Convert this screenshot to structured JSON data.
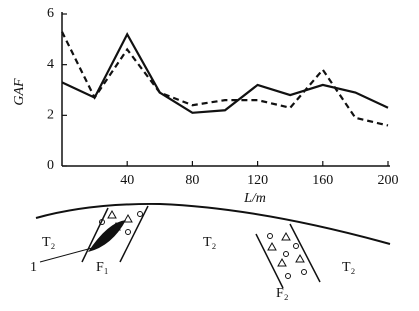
{
  "chart_data": {
    "type": "line",
    "y_label": "GAF",
    "x_label": "L/m",
    "x": [
      0,
      20,
      40,
      60,
      80,
      100,
      120,
      140,
      160,
      180,
      200
    ],
    "series": [
      {
        "color": "#111111",
        "style": "solid",
        "values": [
          3.3,
          2.7,
          5.2,
          2.9,
          2.1,
          2.2,
          3.2,
          2.8,
          3.2,
          2.9,
          2.3
        ]
      },
      {
        "color": "#111111",
        "style": "dashed",
        "values": [
          5.3,
          2.7,
          4.6,
          2.9,
          2.4,
          2.6,
          2.6,
          2.3,
          3.8,
          1.9,
          1.6
        ]
      }
    ],
    "xlim": [
      0,
      200
    ],
    "xticks": [
      40,
      80,
      120,
      160,
      200
    ],
    "ylim": [
      0,
      6
    ],
    "yticks": [
      0,
      2,
      4,
      6
    ],
    "grid": false
  },
  "diagram": {
    "labels": {
      "t2_left": "T₂",
      "t2_mid": "T₂",
      "t2_right": "T₂",
      "f1": "F₁",
      "f2": "F₂",
      "marker": "1"
    }
  }
}
